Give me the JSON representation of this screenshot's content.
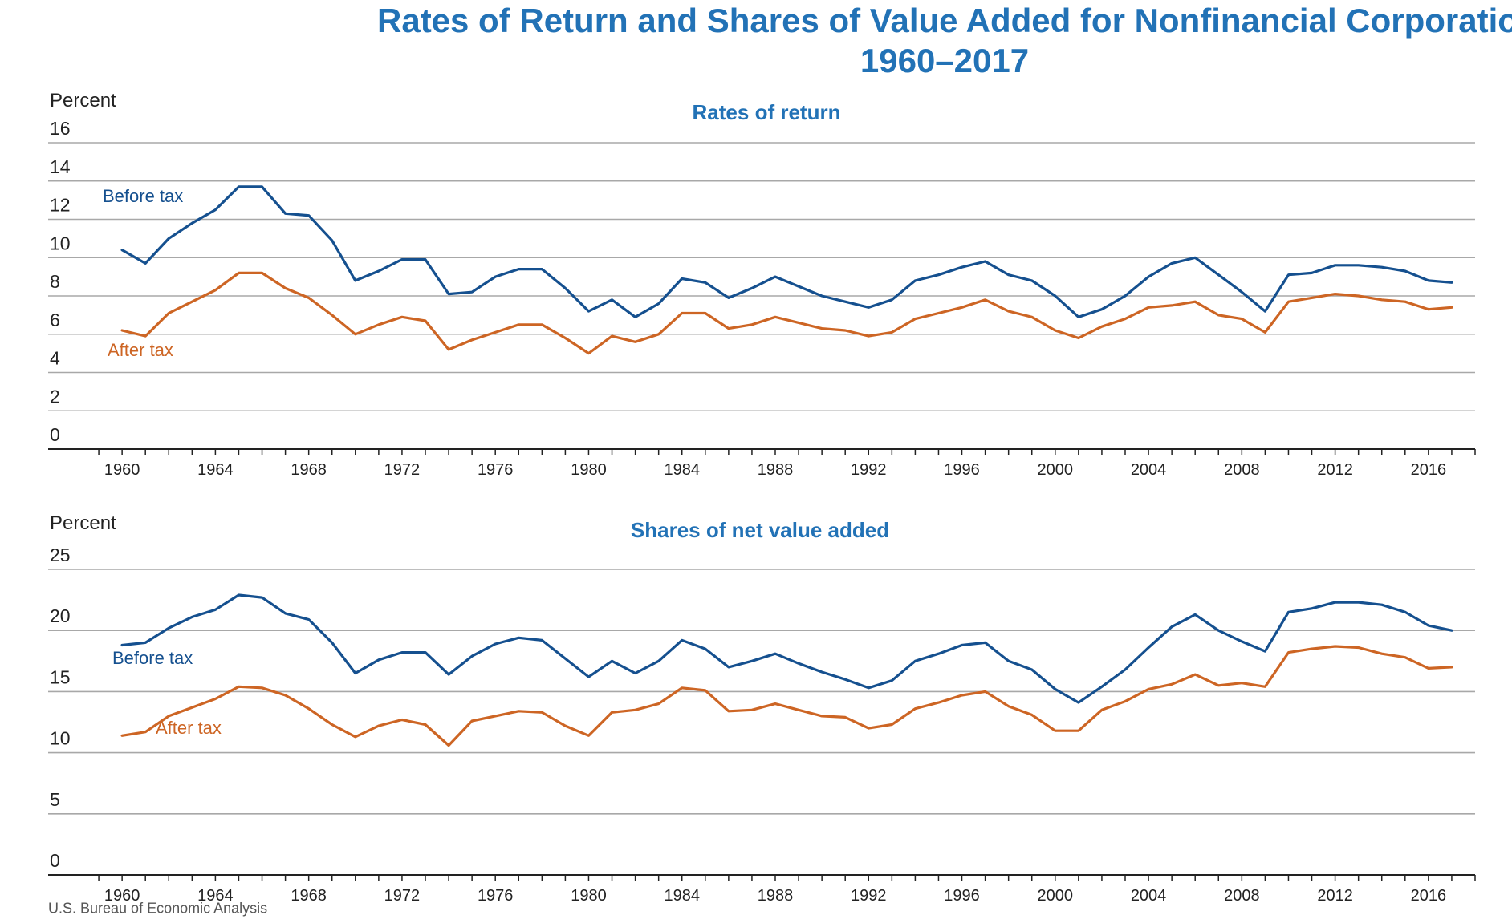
{
  "title_line_1": "Rates of Return and Shares of Value Added for Nonfinancial Corporations,",
  "title_line_2": "1960–2017",
  "source": "U.S. Bureau of Economic Analysis",
  "colors": {
    "title": "#2272b6",
    "before_tax": "#15508f",
    "after_tax": "#cd6524",
    "grid": "#a8a8a8",
    "axis": "#222222",
    "text": "#222222"
  },
  "chart_data": [
    {
      "type": "line",
      "title": "Rates of return",
      "ylabel": "Percent",
      "ylim": [
        0,
        16
      ],
      "yticks": [
        0,
        2,
        4,
        6,
        8,
        10,
        12,
        14,
        16
      ],
      "xlim": [
        1958,
        2018
      ],
      "xticks": [
        1960,
        1964,
        1968,
        1972,
        1976,
        1980,
        1984,
        1988,
        1992,
        1996,
        2000,
        2004,
        2008,
        2012,
        2016
      ],
      "grid": true,
      "x": [
        1960,
        1961,
        1962,
        1963,
        1964,
        1965,
        1966,
        1967,
        1968,
        1969,
        1970,
        1971,
        1972,
        1973,
        1974,
        1975,
        1976,
        1977,
        1978,
        1979,
        1980,
        1981,
        1982,
        1983,
        1984,
        1985,
        1986,
        1987,
        1988,
        1989,
        1990,
        1991,
        1992,
        1993,
        1994,
        1995,
        1996,
        1997,
        1998,
        1999,
        2000,
        2001,
        2002,
        2003,
        2004,
        2005,
        2006,
        2007,
        2008,
        2009,
        2010,
        2011,
        2012,
        2013,
        2014,
        2015,
        2016,
        2017
      ],
      "series": [
        {
          "name": "Before tax",
          "values": [
            10.4,
            9.7,
            11.0,
            11.8,
            12.5,
            13.7,
            13.7,
            12.3,
            12.2,
            10.9,
            8.8,
            9.3,
            9.9,
            9.9,
            8.1,
            8.2,
            9.0,
            9.4,
            9.4,
            8.4,
            7.2,
            7.8,
            6.9,
            7.6,
            8.9,
            8.7,
            7.9,
            8.4,
            9.0,
            8.5,
            8.0,
            7.7,
            7.4,
            7.8,
            8.8,
            9.1,
            9.5,
            9.8,
            9.1,
            8.8,
            8.0,
            6.9,
            7.3,
            8.0,
            9.0,
            9.7,
            10.0,
            9.1,
            8.2,
            7.2,
            9.1,
            9.2,
            9.6,
            9.6,
            9.5,
            9.3,
            8.8,
            8.7
          ]
        },
        {
          "name": "After tax",
          "values": [
            6.2,
            5.9,
            7.1,
            7.7,
            8.3,
            9.2,
            9.2,
            8.4,
            7.9,
            7.0,
            6.0,
            6.5,
            6.9,
            6.7,
            5.2,
            5.7,
            6.1,
            6.5,
            6.5,
            5.8,
            5.0,
            5.9,
            5.6,
            6.0,
            7.1,
            7.1,
            6.3,
            6.5,
            6.9,
            6.6,
            6.3,
            6.2,
            5.9,
            6.1,
            6.8,
            7.1,
            7.4,
            7.8,
            7.2,
            6.9,
            6.2,
            5.8,
            6.4,
            6.8,
            7.4,
            7.5,
            7.7,
            7.0,
            6.8,
            6.1,
            7.7,
            7.9,
            8.1,
            8.0,
            7.8,
            7.7,
            7.3,
            7.4
          ]
        }
      ],
      "annotations": [
        "Before tax",
        "After tax"
      ]
    },
    {
      "type": "line",
      "title": "Shares of net value added",
      "ylabel": "Percent",
      "ylim": [
        0,
        25
      ],
      "yticks": [
        0,
        5,
        10,
        15,
        20,
        25
      ],
      "xlim": [
        1958,
        2018
      ],
      "xticks": [
        1960,
        1964,
        1968,
        1972,
        1976,
        1980,
        1984,
        1988,
        1992,
        1996,
        2000,
        2004,
        2008,
        2012,
        2016
      ],
      "grid": true,
      "x": [
        1960,
        1961,
        1962,
        1963,
        1964,
        1965,
        1966,
        1967,
        1968,
        1969,
        1970,
        1971,
        1972,
        1973,
        1974,
        1975,
        1976,
        1977,
        1978,
        1979,
        1980,
        1981,
        1982,
        1983,
        1984,
        1985,
        1986,
        1987,
        1988,
        1989,
        1990,
        1991,
        1992,
        1993,
        1994,
        1995,
        1996,
        1997,
        1998,
        1999,
        2000,
        2001,
        2002,
        2003,
        2004,
        2005,
        2006,
        2007,
        2008,
        2009,
        2010,
        2011,
        2012,
        2013,
        2014,
        2015,
        2016,
        2017
      ],
      "series": [
        {
          "name": "Before tax",
          "values": [
            18.8,
            19.0,
            20.2,
            21.1,
            21.7,
            22.9,
            22.7,
            21.4,
            20.9,
            19.0,
            16.5,
            17.6,
            18.2,
            18.2,
            16.4,
            17.9,
            18.9,
            19.4,
            19.2,
            17.7,
            16.2,
            17.5,
            16.5,
            17.5,
            19.2,
            18.5,
            17.0,
            17.5,
            18.1,
            17.3,
            16.6,
            16.0,
            15.3,
            15.9,
            17.5,
            18.1,
            18.8,
            19.0,
            17.5,
            16.8,
            15.2,
            14.1,
            15.4,
            16.8,
            18.6,
            20.3,
            21.3,
            20.0,
            19.1,
            18.3,
            21.5,
            21.8,
            22.3,
            22.3,
            22.1,
            21.5,
            20.4,
            20.0
          ]
        },
        {
          "name": "After tax",
          "values": [
            11.4,
            11.7,
            13.0,
            13.7,
            14.4,
            15.4,
            15.3,
            14.7,
            13.6,
            12.3,
            11.3,
            12.2,
            12.7,
            12.3,
            10.6,
            12.6,
            13.0,
            13.4,
            13.3,
            12.2,
            11.4,
            13.3,
            13.5,
            14.0,
            15.3,
            15.1,
            13.4,
            13.5,
            14.0,
            13.5,
            13.0,
            12.9,
            12.0,
            12.3,
            13.6,
            14.1,
            14.7,
            15.0,
            13.8,
            13.1,
            11.8,
            11.8,
            13.5,
            14.2,
            15.2,
            15.6,
            16.4,
            15.5,
            15.7,
            15.4,
            18.2,
            18.5,
            18.7,
            18.6,
            18.1,
            17.8,
            16.9,
            17.0
          ]
        }
      ],
      "annotations": [
        "Before tax",
        "After tax"
      ]
    }
  ]
}
